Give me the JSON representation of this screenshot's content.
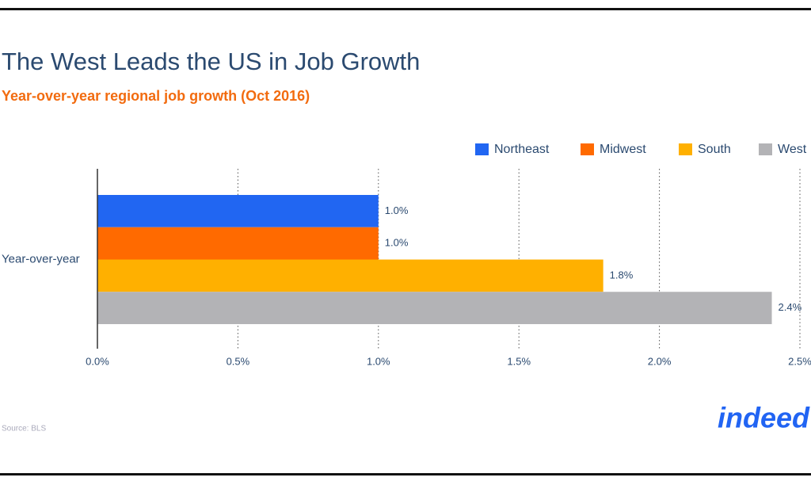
{
  "chart_data": {
    "type": "bar",
    "orientation": "horizontal",
    "title": "The West Leads the US in Job Growth",
    "subtitle": "Year-over-year regional job growth (Oct 2016)",
    "categories": [
      "Year-over-year"
    ],
    "series": [
      {
        "name": "Northeast",
        "color": "#2166f2",
        "values": [
          1.0
        ],
        "value_labels": [
          "1.0%"
        ]
      },
      {
        "name": "Midwest",
        "color": "#ff6a00",
        "values": [
          1.0
        ],
        "value_labels": [
          "1.0%"
        ]
      },
      {
        "name": "South",
        "color": "#ffb000",
        "values": [
          1.8
        ],
        "value_labels": [
          "1.8%"
        ]
      },
      {
        "name": "West",
        "color": "#b3b3b6",
        "values": [
          2.4
        ],
        "value_labels": [
          "2.4%"
        ]
      }
    ],
    "xlim": [
      0,
      2.5
    ],
    "xticks": [
      {
        "value": 0,
        "label": "0.0%"
      },
      {
        "value": 0.5,
        "label": "0.5%"
      },
      {
        "value": 1,
        "label": "1.0%"
      },
      {
        "value": 1.5,
        "label": "1.5%"
      },
      {
        "value": 2,
        "label": "2.0%"
      },
      {
        "value": 2.5,
        "label": "2.5%"
      }
    ],
    "grid": true,
    "legend": "top-right",
    "source": "Source: BLS",
    "logo": "indeed"
  }
}
